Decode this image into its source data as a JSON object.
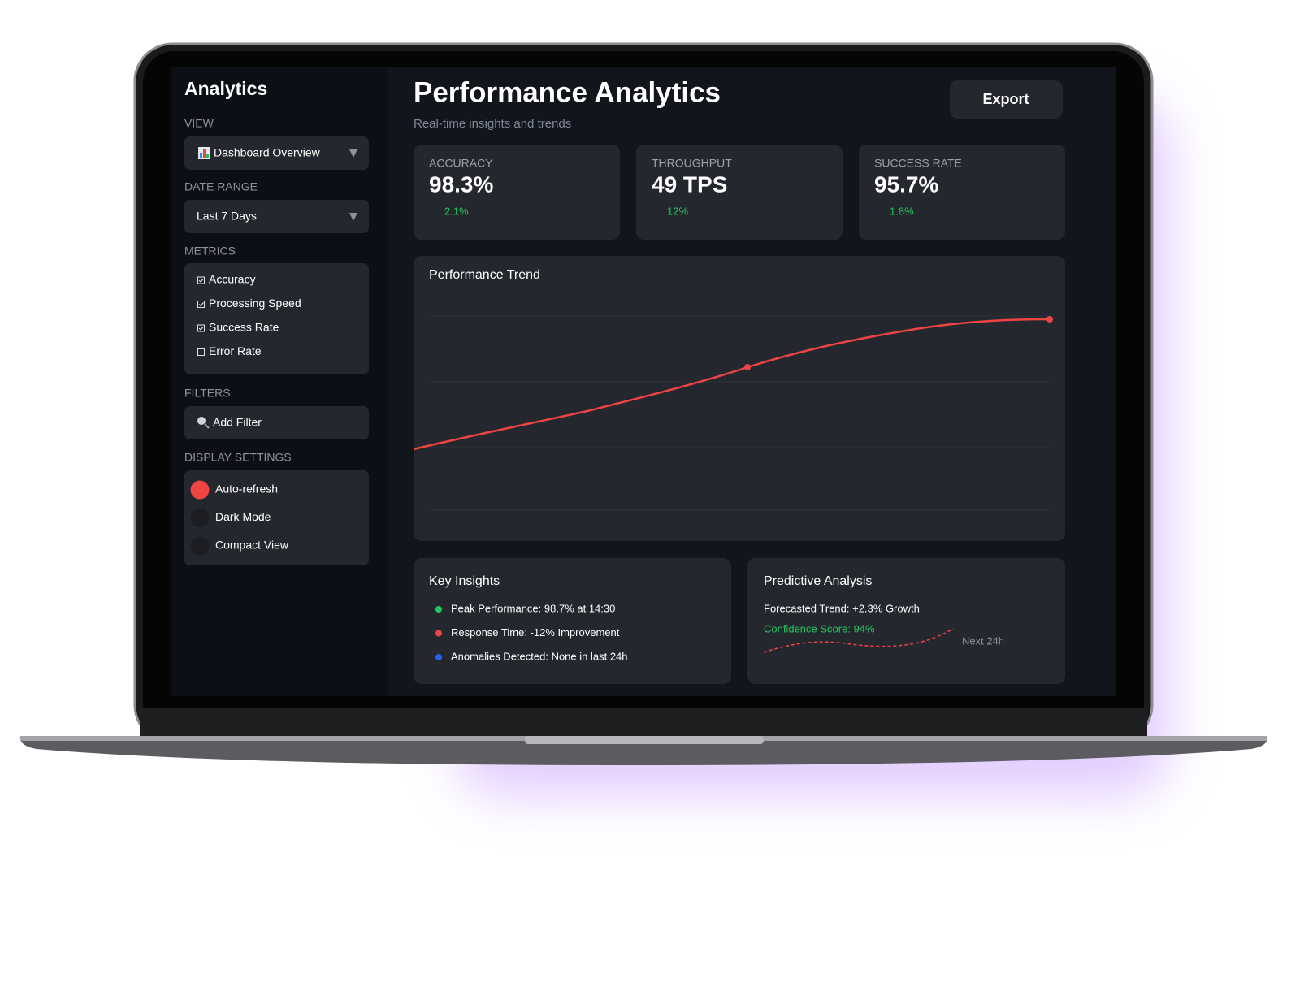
{
  "sidebar": {
    "title": "Analytics",
    "view": {
      "label": "VIEW",
      "value": "Dashboard Overview"
    },
    "date_range": {
      "label": "DATE RANGE",
      "value": "Last 7 Days"
    },
    "metrics": {
      "label": "METRICS",
      "items": [
        {
          "label": "Accuracy",
          "checked": true
        },
        {
          "label": "Processing Speed",
          "checked": true
        },
        {
          "label": "Success Rate",
          "checked": true
        },
        {
          "label": "Error Rate",
          "checked": false
        }
      ]
    },
    "filters": {
      "label": "FILTERS",
      "button": "Add Filter"
    },
    "display": {
      "label": "DISPLAY SETTINGS",
      "items": [
        {
          "label": "Auto-refresh",
          "on": true
        },
        {
          "label": "Dark Mode",
          "on": false
        },
        {
          "label": "Compact View",
          "on": false
        }
      ]
    }
  },
  "header": {
    "title": "Performance Analytics",
    "subtitle": "Real-time insights and trends",
    "export": "Export"
  },
  "cards": [
    {
      "label": "ACCURACY",
      "value": "98.3%",
      "change": "2.1%"
    },
    {
      "label": "THROUGHPUT",
      "value": "49 TPS",
      "change": "12%"
    },
    {
      "label": "SUCCESS RATE",
      "value": "95.7%",
      "change": "1.8%"
    }
  ],
  "trend": {
    "title": "Performance Trend"
  },
  "insights": {
    "title": "Key Insights",
    "items": [
      {
        "text": "Peak Performance: 98.7% at 14:30",
        "color": "#22c55e"
      },
      {
        "text": "Response Time: -12% Improvement",
        "color": "#ef4444"
      },
      {
        "text": "Anomalies Detected: None in last 24h",
        "color": "#2563eb"
      }
    ]
  },
  "predictive": {
    "title": "Predictive Analysis",
    "forecast": "Forecasted Trend: +2.3% Growth",
    "confidence": "Confidence Score: 94%",
    "horizon": "Next 24h"
  }
}
